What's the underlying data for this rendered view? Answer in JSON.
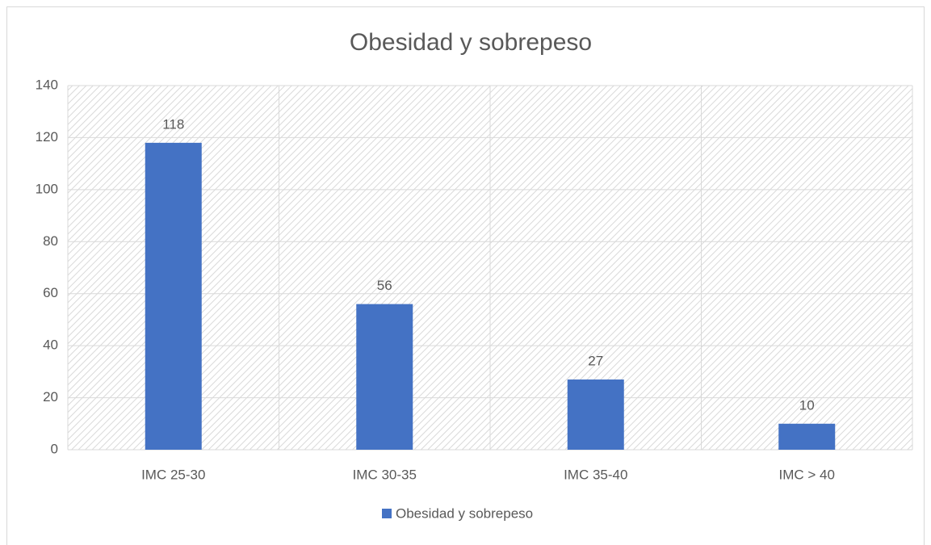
{
  "chart_data": {
    "type": "bar",
    "title": "Obesidad y sobrepeso",
    "categories": [
      "IMC 25-30",
      "IMC 30-35",
      "IMC 35-40",
      "IMC > 40"
    ],
    "series": [
      {
        "name": "Obesidad y sobrepeso",
        "color": "#4472c4",
        "values": [
          118,
          56,
          27,
          10
        ]
      }
    ],
    "ylim": [
      0,
      140
    ],
    "yticks": [
      0,
      20,
      40,
      60,
      80,
      100,
      120,
      140
    ],
    "grid": true,
    "data_labels": true,
    "legend": "bottom"
  }
}
